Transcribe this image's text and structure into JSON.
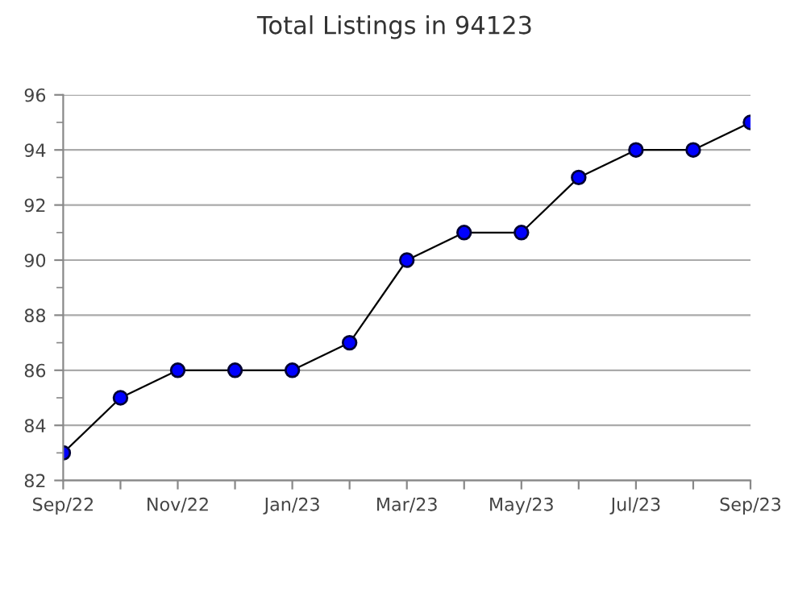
{
  "chart_data": {
    "type": "line",
    "title": "Total Listings in 94123",
    "categories": [
      "Sep/22",
      null,
      "Nov/22",
      null,
      "Jan/23",
      null,
      "Mar/23",
      null,
      "May/23",
      null,
      "Jul/23",
      null,
      "Sep/23"
    ],
    "series": [
      {
        "color": "#0000ff",
        "values": [
          83,
          85,
          86,
          86,
          86,
          87,
          90,
          91,
          91,
          93,
          94,
          94,
          95
        ]
      }
    ],
    "ylim": [
      82,
      96
    ],
    "yticks": [
      82,
      {
        "value": 83,
        "label": null
      },
      84,
      {
        "value": 85,
        "label": null
      },
      86,
      {
        "value": 87,
        "label": null
      },
      88,
      {
        "value": 89,
        "label": null
      },
      90,
      {
        "value": 91,
        "label": null
      },
      92,
      {
        "value": 93,
        "label": null
      },
      94,
      {
        "value": 95,
        "label": null
      },
      96
    ],
    "grid": "y",
    "marker": "circle",
    "line_style": "solid"
  }
}
